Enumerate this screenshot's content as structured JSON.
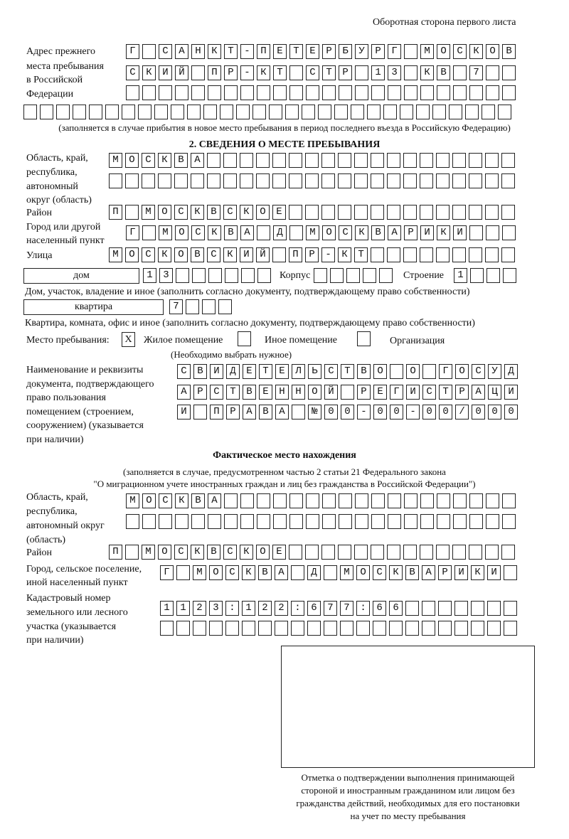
{
  "header": "Оборотная сторона первого листа",
  "prev": {
    "label": [
      "Адрес прежнего",
      "места пребывания",
      "в Российской",
      "Федерации"
    ],
    "rows": [
      "Г САНКТ-ПЕТЕРБУРГ МОСКОВ",
      "СКИЙ ПР-КТ СТР 13 КВ 7",
      "",
      ""
    ],
    "note": "(заполняется в случае прибытия в новое место пребывания в период последнего въезда в Российскую Федерацию)"
  },
  "section2": {
    "title": "2. СВЕДЕНИЯ О МЕСТЕ ПРЕБЫВАНИЯ",
    "region_label": [
      "Область, край,",
      "республика,",
      "автономный",
      "округ (область)"
    ],
    "region": [
      "МОСКВА",
      ""
    ],
    "district_label": "Район",
    "district": "П МОСКВСКОЕ",
    "city_label": [
      "Город или другой",
      "населенный пункт"
    ],
    "city": "Г МОСКВА Д МОСКВАРИКИ",
    "street_label": "Улица",
    "street": "МОСКОВСКИЙ ПР-КТ",
    "house_type": "дом",
    "house": "13",
    "korpus_label": "Корпус",
    "korpus": "",
    "building_label": "Строение",
    "building": "1",
    "house_note": "Дом, участок, владение и иное (заполнить согласно документу, подтверждающему право собственности)",
    "flat_type": "квартира",
    "flat": "7",
    "flat_note": "Квартира, комната, офис и иное (заполнить согласно документу, подтверждающему право собственности)",
    "place_label": "Место пребывания:",
    "options": [
      {
        "label": "Жилое помещение",
        "mark": "X"
      },
      {
        "label": "Иное помещение",
        "mark": ""
      },
      {
        "label": "Организация",
        "mark": ""
      }
    ],
    "place_note": "(Необходимо выбрать нужное)",
    "doc_label": [
      "Наименование и реквизиты",
      "документа, подтверждающего",
      "право пользования",
      "помещением (строением,",
      "сооружением) (указывается",
      "при наличии)"
    ],
    "doc": [
      "СВИДЕТЕЛЬСТВО О ГОСУД",
      "АРСТВЕННОЙ РЕГИСТРАЦИ",
      "И ПРАВА №00-00-00/000"
    ]
  },
  "actual": {
    "title": "Фактическое место нахождения",
    "subtitle": [
      "(заполняется в случае, предусмотренном частью 2 статьи 21 Федерального закона",
      "\"О миграционном учете иностранных граждан и лиц без гражданства в Российской Федерации\")"
    ],
    "region_label": [
      "Область, край,",
      "республика,",
      "автономный округ",
      "(область)"
    ],
    "region": [
      "МОСКВА",
      ""
    ],
    "district_label": "Район",
    "district": "П МОСКВСКОЕ",
    "city_label": [
      "Город, сельское поселение,",
      "иной населенный пункт"
    ],
    "city": "Г МОСКВА Д МОСКВАРИКИ",
    "cadastre_label": [
      "Кадастровый номер",
      "земельного или лесного",
      "участка (указывается",
      "при наличии)"
    ],
    "cadastre": [
      "1123:122:677:66",
      ""
    ]
  },
  "stamp_caption": [
    "Отметка о подтверждении выполнения принимающей",
    "стороной и иностранным гражданином или лицом без",
    "гражданства действий, необходимых для его постановки",
    "на учет по месту пребывания"
  ]
}
